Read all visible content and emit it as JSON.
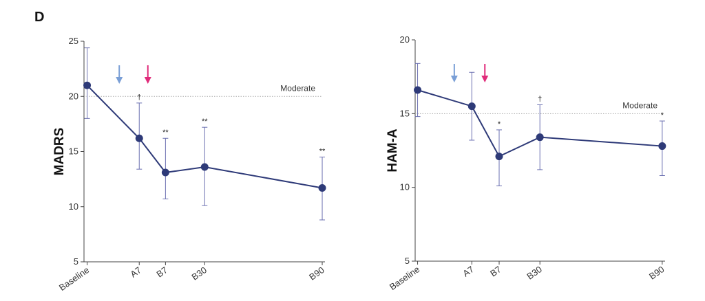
{
  "panel_label": "D",
  "colors": {
    "line": "#2e3a78",
    "marker": "#2e3a78",
    "errorbar": "#6a6fb0",
    "refline": "#aaaaaa",
    "arrow_a": "#7a9fd6",
    "arrow_b": "#e02b7a"
  },
  "chart_data": [
    {
      "type": "line",
      "ylabel": "MADRS",
      "ylim": [
        5,
        25
      ],
      "yticks": [
        5,
        10,
        15,
        20,
        25
      ],
      "x": [
        0,
        1.33,
        2.0,
        3.0,
        6.0
      ],
      "categories": [
        "Baseline",
        "A7",
        "B7",
        "B30",
        "B90"
      ],
      "values": [
        21.0,
        16.2,
        13.1,
        13.6,
        11.7
      ],
      "err_upper": [
        24.4,
        19.4,
        16.2,
        17.2,
        14.5
      ],
      "err_lower": [
        18.0,
        13.4,
        10.7,
        10.1,
        8.8
      ],
      "significance": [
        "",
        "†",
        "**",
        "**",
        "**"
      ],
      "reference": {
        "value": 20,
        "label": "Moderate"
      },
      "arrows_at_x": [
        0.82,
        1.55
      ]
    },
    {
      "type": "line",
      "ylabel": "HAM-A",
      "ylim": [
        5,
        20
      ],
      "yticks": [
        5,
        10,
        15,
        20
      ],
      "x": [
        0,
        1.33,
        2.0,
        3.0,
        6.0
      ],
      "categories": [
        "Baseline",
        "A7",
        "B7",
        "B30",
        "B90"
      ],
      "values": [
        16.6,
        15.5,
        12.1,
        13.4,
        12.8
      ],
      "err_upper": [
        18.4,
        17.8,
        13.9,
        15.6,
        14.5
      ],
      "err_lower": [
        14.8,
        13.2,
        10.1,
        11.2,
        10.8
      ],
      "significance": [
        "",
        "",
        "*",
        "†",
        "*"
      ],
      "reference": {
        "value": 15,
        "label": "Moderate"
      },
      "arrows_at_x": [
        0.9,
        1.65
      ]
    }
  ]
}
